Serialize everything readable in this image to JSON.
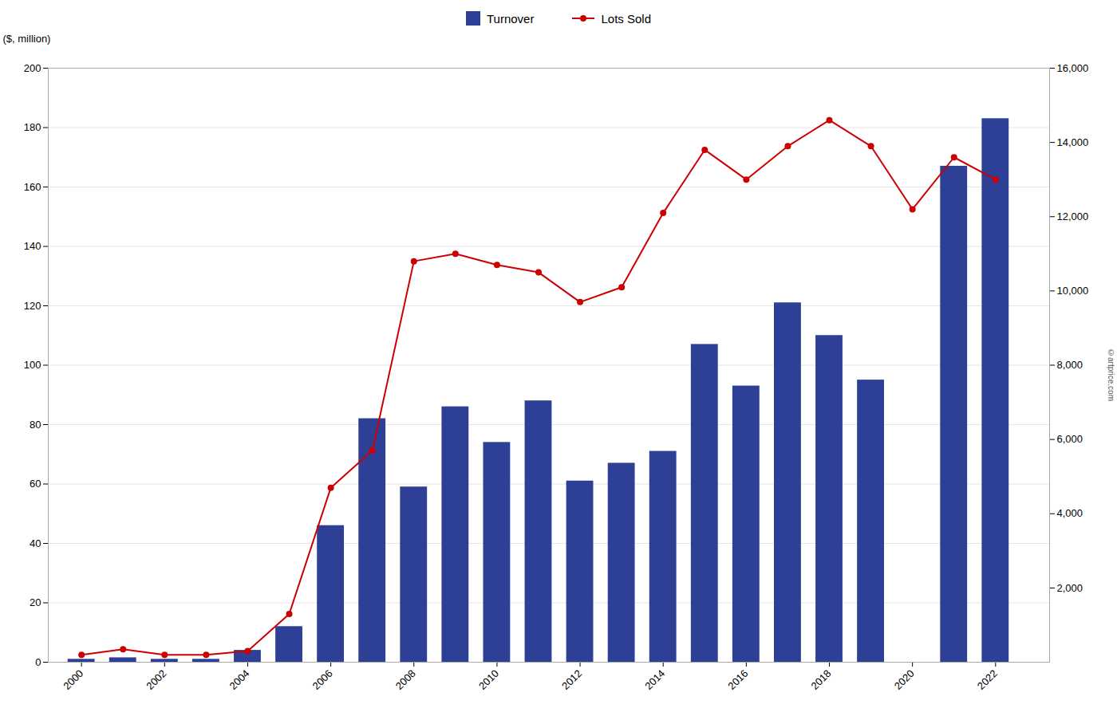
{
  "chart_data": {
    "type": "bar",
    "x": [
      2000,
      2001,
      2002,
      2003,
      2004,
      2005,
      2006,
      2007,
      2008,
      2009,
      2010,
      2011,
      2012,
      2013,
      2014,
      2015,
      2016,
      2017,
      2018,
      2019,
      2020,
      2021,
      2022
    ],
    "series": [
      {
        "name": "Turnover",
        "type": "bar",
        "color": "#2e4096",
        "values": [
          1,
          1.5,
          1,
          1,
          4,
          12,
          46,
          82,
          59,
          86,
          74,
          88,
          61,
          67,
          71,
          107,
          93,
          121,
          110,
          95,
          0,
          167,
          183
        ]
      },
      {
        "name": "Lots Sold",
        "type": "line",
        "color": "#cc0000",
        "marker": "circle",
        "axis": "y2",
        "values": [
          200,
          350,
          200,
          200,
          300,
          1300,
          4700,
          5700,
          10800,
          11000,
          10700,
          10500,
          9700,
          10100,
          12100,
          13800,
          13000,
          13900,
          14600,
          13900,
          12200,
          13600,
          13000
        ]
      }
    ],
    "xlim": [
      1999.2,
      2023.3
    ],
    "xticks": [
      2000,
      2002,
      2004,
      2006,
      2008,
      2010,
      2012,
      2014,
      2016,
      2018,
      2020,
      2022
    ],
    "ylim": [
      0,
      200
    ],
    "yticks": [
      0,
      20,
      40,
      60,
      80,
      100,
      120,
      140,
      160,
      180,
      200
    ],
    "ylabel": "($, million)",
    "y2lim": [
      0,
      16000
    ],
    "y2ticks": [
      {
        "value": 2000,
        "label": "2,000"
      },
      {
        "value": 4000,
        "label": "4,000"
      },
      {
        "value": 6000,
        "label": "6,000"
      },
      {
        "value": 8000,
        "label": "8,000"
      },
      {
        "value": 10000,
        "label": "10,000"
      },
      {
        "value": 12000,
        "label": "12,000"
      },
      {
        "value": 14000,
        "label": "14,000"
      },
      {
        "value": 16000,
        "label": "16,000"
      }
    ],
    "grid": true,
    "legend": "top",
    "annotations": [
      "©artprice.com"
    ]
  }
}
